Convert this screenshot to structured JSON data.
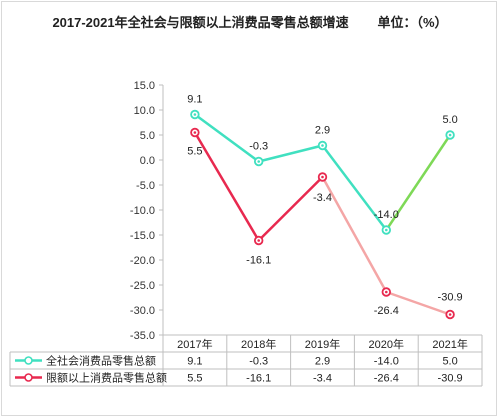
{
  "chart_data": {
    "type": "line",
    "title": "2017-2021年全社会与限额以上消费品零售总额增速        单位：（%）",
    "categories": [
      "2017年",
      "2018年",
      "2019年",
      "2020年",
      "2021年"
    ],
    "ylim": [
      -35,
      15
    ],
    "yticks": [
      "15.0",
      "10.0",
      "5.0",
      "0.0",
      "-5.0",
      "-10.0",
      "-15.0",
      "-20.0",
      "-25.0",
      "-30.0",
      "-35.0"
    ],
    "grid": false,
    "legend": "bottom-left table",
    "series": [
      {
        "name": "全社会消费品零售总额",
        "values": [
          9.1,
          -0.3,
          2.9,
          -14.0,
          5.0
        ],
        "labels": [
          "9.1",
          "-0.3",
          "2.9",
          "-14.0",
          "5.0"
        ],
        "color": "#40e0c0"
      },
      {
        "name": "限额以上消费品零售总额",
        "values": [
          5.5,
          -16.1,
          -3.4,
          -26.4,
          -30.9
        ],
        "labels": [
          "5.5",
          "-16.1",
          "-3.4",
          "-26.4",
          "-30.9"
        ],
        "color": "#e8294f",
        "color_later": "#f4a6a6"
      }
    ]
  }
}
